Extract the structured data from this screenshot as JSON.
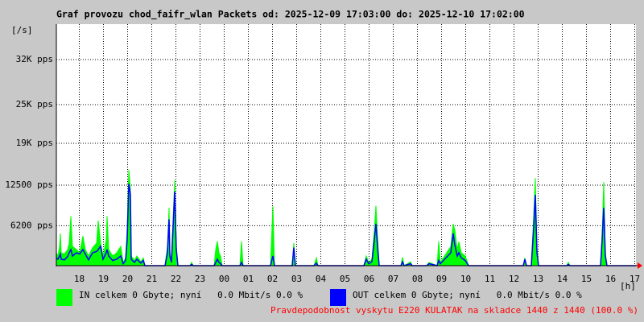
{
  "chart_data": {
    "type": "area-line",
    "title": "Graf provozu chod_faifr_wlan Packets od: 2025-12-09 17:03:00 do: 2025-12-10 17:02:00",
    "y_label": "[/s]",
    "x_label": "[h]",
    "footer": "Pravdepodobnost vyskytu E220 KULATAK na skladce 1440 z 1440 (100.0 %)",
    "grid": true,
    "xlim": [
      0,
      24
    ],
    "ylim": [
      0,
      37500
    ],
    "yticks": [
      {
        "value": 6200,
        "label": "6200 pps"
      },
      {
        "value": 12500,
        "label": "12500 pps"
      },
      {
        "value": 19000,
        "label": "19K pps"
      },
      {
        "value": 25000,
        "label": "25K pps"
      },
      {
        "value": 32000,
        "label": "32K pps"
      }
    ],
    "xticks": [
      {
        "value": 0.95,
        "label": "18"
      },
      {
        "value": 1.95,
        "label": "19"
      },
      {
        "value": 2.95,
        "label": "20"
      },
      {
        "value": 3.95,
        "label": "21"
      },
      {
        "value": 4.95,
        "label": "22"
      },
      {
        "value": 5.95,
        "label": "23"
      },
      {
        "value": 6.95,
        "label": "00"
      },
      {
        "value": 7.95,
        "label": "01"
      },
      {
        "value": 8.95,
        "label": "02"
      },
      {
        "value": 9.95,
        "label": "03"
      },
      {
        "value": 10.95,
        "label": "04"
      },
      {
        "value": 11.95,
        "label": "05"
      },
      {
        "value": 12.95,
        "label": "06"
      },
      {
        "value": 13.95,
        "label": "07"
      },
      {
        "value": 14.95,
        "label": "08"
      },
      {
        "value": 15.95,
        "label": "09"
      },
      {
        "value": 16.95,
        "label": "10"
      },
      {
        "value": 17.95,
        "label": "11"
      },
      {
        "value": 18.95,
        "label": "12"
      },
      {
        "value": 19.95,
        "label": "13"
      },
      {
        "value": 20.95,
        "label": "14"
      },
      {
        "value": 21.95,
        "label": "15"
      },
      {
        "value": 22.95,
        "label": "16"
      },
      {
        "value": 23.95,
        "label": "17"
      }
    ],
    "x": [
      0,
      0.067,
      0.133,
      0.167,
      0.2,
      0.333,
      0.467,
      0.533,
      0.6,
      0.667,
      0.833,
      0.967,
      1.1,
      1.2,
      1.333,
      1.5,
      1.667,
      1.733,
      1.833,
      1.933,
      2.067,
      2.1,
      2.167,
      2.333,
      2.5,
      2.667,
      2.767,
      2.867,
      2.933,
      3.0,
      3.067,
      3.1,
      3.233,
      3.333,
      3.5,
      3.6,
      3.667,
      4.5,
      4.6,
      4.667,
      4.7,
      4.767,
      4.833,
      4.9,
      4.967,
      5.033,
      5.533,
      5.6,
      5.667,
      6.533,
      6.6,
      6.667,
      6.733,
      6.8,
      6.867,
      7.6,
      7.667,
      7.733,
      8.867,
      8.967,
      9.033,
      9.767,
      9.833,
      9.9,
      10.667,
      10.767,
      10.833,
      12.733,
      12.833,
      12.933,
      13.067,
      13.167,
      13.233,
      13.3,
      13.367,
      14.267,
      14.333,
      14.4,
      14.667,
      14.733,
      15.333,
      15.433,
      15.767,
      15.833,
      15.9,
      16.333,
      16.433,
      16.5,
      16.6,
      16.667,
      16.767,
      16.933,
      17.067,
      19.333,
      19.4,
      19.467,
      19.667,
      19.767,
      19.833,
      19.9,
      19.967,
      21.133,
      21.2,
      21.267,
      22.533,
      22.6,
      22.667,
      22.733,
      22.8,
      24
    ],
    "series": [
      {
        "name": "IN celkem 0 Gbyte; nyní   0.0 Mbit/s 0.0 %",
        "color": "#00ff00",
        "style": "area",
        "values": [
          2000,
          1500,
          3000,
          5000,
          2000,
          1800,
          2500,
          3500,
          7700,
          3000,
          2500,
          2000,
          4600,
          2500,
          1500,
          2800,
          3500,
          7000,
          3500,
          1500,
          4000,
          7700,
          2500,
          1500,
          2000,
          3000,
          500,
          1200,
          6000,
          14900,
          12000,
          1500,
          800,
          1500,
          600,
          1200,
          0,
          0,
          3000,
          9000,
          2000,
          800,
          7000,
          13300,
          3000,
          0,
          0,
          500,
          0,
          0,
          2500,
          3800,
          2000,
          1500,
          0,
          0,
          3800,
          0,
          0,
          9200,
          0,
          0,
          3500,
          0,
          0,
          1200,
          0,
          0,
          1500,
          500,
          1000,
          5500,
          9300,
          4500,
          0,
          0,
          1300,
          0,
          600,
          0,
          0,
          500,
          0,
          3800,
          500,
          3000,
          6500,
          5500,
          2500,
          3700,
          2000,
          1500,
          0,
          0,
          1200,
          0,
          0,
          8000,
          13600,
          3000,
          0,
          0,
          500,
          0,
          0,
          5000,
          13000,
          2000,
          0,
          0
        ]
      },
      {
        "name": "OUT celkem 0 Gbyte; nyní   0.0 Mbit/s 0.0 %",
        "color": "#0000ff",
        "style": "line",
        "values": [
          1200,
          1000,
          1500,
          1800,
          1000,
          900,
          1400,
          2000,
          2500,
          1500,
          2000,
          1800,
          2500,
          1800,
          900,
          2000,
          2200,
          2500,
          3000,
          1000,
          2000,
          2500,
          1500,
          800,
          1000,
          1500,
          300,
          800,
          4000,
          12700,
          11000,
          1000,
          500,
          1000,
          400,
          800,
          0,
          0,
          2000,
          7200,
          1500,
          500,
          6000,
          11500,
          2500,
          0,
          0,
          200,
          0,
          0,
          500,
          1000,
          500,
          300,
          0,
          0,
          500,
          0,
          0,
          1500,
          0,
          0,
          2800,
          0,
          0,
          400,
          0,
          0,
          1000,
          300,
          600,
          4000,
          6500,
          3000,
          0,
          0,
          600,
          0,
          300,
          0,
          0,
          300,
          0,
          800,
          300,
          2000,
          5000,
          3200,
          1500,
          2000,
          1200,
          800,
          0,
          0,
          1000,
          0,
          0,
          6000,
          11000,
          2000,
          0,
          0,
          200,
          0,
          0,
          4000,
          9000,
          1500,
          0,
          0
        ]
      }
    ]
  }
}
